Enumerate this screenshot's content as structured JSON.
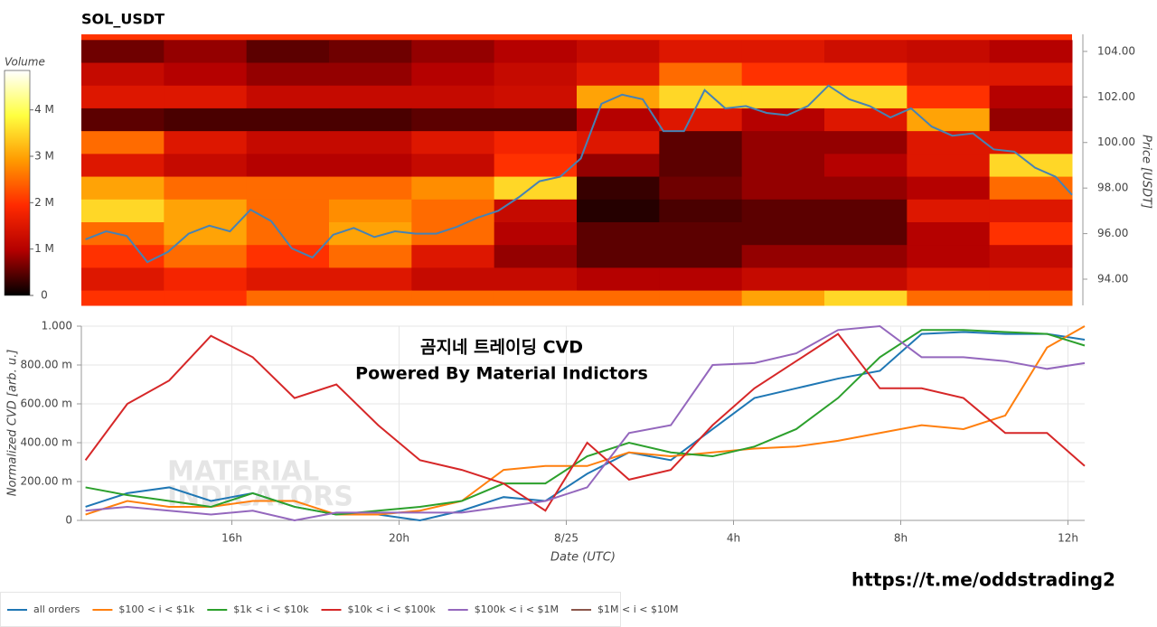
{
  "chart_data": [
    {
      "type": "heatmap",
      "title": "SOL_USDT",
      "colorbar_label": "Volume",
      "y2label": "Price [USDT]",
      "colorscale": [
        "#000000",
        "#b30000",
        "#ff2a00",
        "#ff9a00",
        "#ffff40",
        "#ffffff"
      ],
      "clim": [
        0,
        4850000
      ],
      "cticks": [
        0,
        {
          "value": 1000000,
          "label": "1 M"
        },
        {
          "value": 2000000,
          "label": "2 M"
        },
        {
          "value": 3000000,
          "label": "3 M"
        },
        {
          "value": 4000000,
          "label": "4 M"
        }
      ],
      "xlim": [
        12.4,
        36.4
      ],
      "x_edges": [
        12.4,
        14.4,
        16.4,
        18.4,
        20.4,
        22.4,
        24.4,
        26.4,
        28.4,
        30.4,
        32.4,
        34.4,
        36.4
      ],
      "y2lim": [
        92.85,
        104.75
      ],
      "y2ticks": [
        {
          "value": 94,
          "label": "94.00"
        },
        {
          "value": 96,
          "label": "96.00"
        },
        {
          "value": 98,
          "label": "98.00"
        },
        {
          "value": 100,
          "label": "100.00"
        },
        {
          "value": 102,
          "label": "102.00"
        },
        {
          "value": 104,
          "label": "104.00"
        }
      ],
      "price_levels": [
        104,
        103,
        102,
        101,
        100,
        99,
        98,
        97,
        96,
        95,
        94,
        93
      ],
      "volume": [
        [
          600000,
          800000,
          500000,
          600000,
          800000,
          1000000,
          1200000,
          1500000,
          1500000,
          1300000,
          1200000,
          1000000
        ],
        [
          1200000,
          1000000,
          800000,
          800000,
          1000000,
          1200000,
          1500000,
          2500000,
          2000000,
          2000000,
          1500000,
          1500000
        ],
        [
          1500000,
          1500000,
          1200000,
          1200000,
          1200000,
          1300000,
          3000000,
          3500000,
          3500000,
          3500000,
          2000000,
          1000000
        ],
        [
          500000,
          400000,
          400000,
          400000,
          500000,
          500000,
          1000000,
          1500000,
          1000000,
          1500000,
          3000000,
          800000
        ],
        [
          2500000,
          1500000,
          1200000,
          1200000,
          1500000,
          1800000,
          1500000,
          500000,
          800000,
          800000,
          1500000,
          1500000
        ],
        [
          1500000,
          1200000,
          1000000,
          1000000,
          1200000,
          2000000,
          800000,
          500000,
          800000,
          1000000,
          1500000,
          3500000
        ],
        [
          3000000,
          2500000,
          2500000,
          2500000,
          2800000,
          3500000,
          300000,
          600000,
          800000,
          800000,
          1000000,
          2500000
        ],
        [
          3500000,
          3000000,
          2500000,
          2800000,
          2500000,
          1200000,
          200000,
          400000,
          500000,
          500000,
          1500000,
          1500000
        ],
        [
          2500000,
          3000000,
          2500000,
          3000000,
          2500000,
          1000000,
          500000,
          500000,
          500000,
          500000,
          1000000,
          2000000
        ],
        [
          2000000,
          2500000,
          2000000,
          2500000,
          1500000,
          800000,
          500000,
          500000,
          800000,
          800000,
          1000000,
          1200000
        ],
        [
          1500000,
          1800000,
          1500000,
          1500000,
          1200000,
          1200000,
          1000000,
          1000000,
          1200000,
          1200000,
          1500000,
          1500000
        ],
        [
          2000000,
          2000000,
          2500000,
          2500000,
          2500000,
          2500000,
          2500000,
          2500000,
          3000000,
          3500000,
          2500000,
          2500000
        ]
      ],
      "price": {
        "color": "#4682b4",
        "x": [
          12.5,
          13.0,
          13.5,
          14.0,
          14.5,
          15.0,
          15.5,
          16.0,
          16.5,
          17.0,
          17.5,
          18.0,
          18.5,
          19.0,
          19.5,
          20.0,
          20.5,
          21.0,
          21.5,
          22.0,
          22.5,
          23.0,
          23.5,
          24.0,
          24.5,
          25.0,
          25.5,
          26.0,
          26.5,
          27.0,
          27.5,
          28.0,
          28.5,
          29.0,
          29.5,
          30.0,
          30.5,
          31.0,
          31.5,
          32.0,
          32.5,
          33.0,
          33.5,
          34.0,
          34.5,
          35.0,
          35.5,
          36.0,
          36.4
        ],
        "values": [
          95.75,
          96.1,
          95.9,
          94.75,
          95.2,
          96.0,
          96.35,
          96.1,
          97.05,
          96.55,
          95.35,
          94.95,
          95.95,
          96.25,
          95.85,
          96.1,
          96.0,
          96.0,
          96.3,
          96.7,
          97.0,
          97.6,
          98.3,
          98.5,
          99.3,
          101.7,
          102.1,
          101.9,
          100.5,
          100.5,
          102.3,
          101.5,
          101.6,
          101.3,
          101.2,
          101.6,
          102.5,
          101.9,
          101.6,
          101.1,
          101.5,
          100.7,
          100.3,
          100.4,
          99.7,
          99.6,
          98.9,
          98.5,
          97.7
        ]
      }
    },
    {
      "type": "line",
      "xlabel": "Date (UTC)",
      "ylabel": "Normalized CVD [arb. u.]",
      "annotations": [
        "곰지네 트레이딩 CVD",
        "Powered By Material Indictors"
      ],
      "watermark": [
        "MATERIAL",
        "INDICATORS"
      ],
      "xlim": [
        12.4,
        36.4
      ],
      "xticks": [
        {
          "value": 16,
          "label": "16h"
        },
        {
          "value": 20,
          "label": "20h"
        },
        {
          "value": 24,
          "label": "8/25"
        },
        {
          "value": 28,
          "label": "4h"
        },
        {
          "value": 32,
          "label": "8h"
        },
        {
          "value": 36,
          "label": "12h"
        }
      ],
      "ylim": [
        0,
        1
      ],
      "yticks": [
        0,
        {
          "value": 0.2,
          "label": "200.00 m"
        },
        {
          "value": 0.4,
          "label": "400.00 m"
        },
        {
          "value": 0.6,
          "label": "600.00 m"
        },
        {
          "value": 0.8,
          "label": "800.00 m"
        },
        {
          "value": 1,
          "label": "1.000"
        }
      ],
      "grid": true,
      "legend": "bottom",
      "x": [
        12.5,
        13.5,
        14.5,
        15.5,
        16.5,
        17.5,
        18.5,
        19.5,
        20.5,
        21.5,
        22.5,
        23.5,
        24.5,
        25.5,
        26.5,
        27.5,
        28.5,
        29.5,
        30.5,
        31.5,
        32.5,
        33.5,
        34.5,
        35.5,
        36.4
      ],
      "series": [
        {
          "name": "all orders",
          "color": "#1f77b4",
          "values": [
            0.07,
            0.14,
            0.17,
            0.1,
            0.14,
            0.07,
            0.03,
            0.03,
            0.0,
            0.05,
            0.12,
            0.1,
            0.24,
            0.35,
            0.31,
            0.47,
            0.63,
            0.68,
            0.73,
            0.77,
            0.96,
            0.97,
            0.96,
            0.96,
            0.93
          ]
        },
        {
          "name": "$100 < i < $1k",
          "color": "#ff7f0e",
          "values": [
            0.03,
            0.1,
            0.07,
            0.07,
            0.1,
            0.1,
            0.03,
            0.03,
            0.05,
            0.1,
            0.26,
            0.28,
            0.28,
            0.35,
            0.33,
            0.35,
            0.37,
            0.38,
            0.41,
            0.45,
            0.49,
            0.47,
            0.54,
            0.89,
            1.0
          ]
        },
        {
          "name": "$1k < i < $10k",
          "color": "#2ca02c",
          "values": [
            0.17,
            0.13,
            0.1,
            0.07,
            0.14,
            0.07,
            0.03,
            0.05,
            0.07,
            0.1,
            0.19,
            0.19,
            0.33,
            0.4,
            0.35,
            0.33,
            0.38,
            0.47,
            0.63,
            0.84,
            0.98,
            0.98,
            0.97,
            0.96,
            0.9
          ]
        },
        {
          "name": "$10k < i < $100k",
          "color": "#d62728",
          "values": [
            0.31,
            0.6,
            0.72,
            0.95,
            0.84,
            0.63,
            0.7,
            0.49,
            0.31,
            0.26,
            0.19,
            0.05,
            0.4,
            0.21,
            0.26,
            0.49,
            0.68,
            0.82,
            0.96,
            0.68,
            0.68,
            0.63,
            0.45,
            0.45,
            0.28
          ]
        },
        {
          "name": "$100k < i < $1M",
          "color": "#9467bd",
          "values": [
            0.05,
            0.07,
            0.05,
            0.03,
            0.05,
            0.0,
            0.04,
            0.04,
            0.04,
            0.04,
            0.07,
            0.1,
            0.17,
            0.45,
            0.49,
            0.8,
            0.81,
            0.86,
            0.98,
            1.0,
            0.84,
            0.84,
            0.82,
            0.78,
            0.81
          ]
        },
        {
          "name": "$1M < i < $10M",
          "color": "#8c564b",
          "values": [
            null,
            null,
            null,
            null,
            null,
            null,
            null,
            null,
            null,
            null,
            null,
            null,
            null,
            null,
            null,
            null,
            null,
            null,
            null,
            null,
            null,
            null,
            null,
            null,
            null
          ]
        }
      ]
    }
  ],
  "footer": "https://t.me/oddstrading2"
}
